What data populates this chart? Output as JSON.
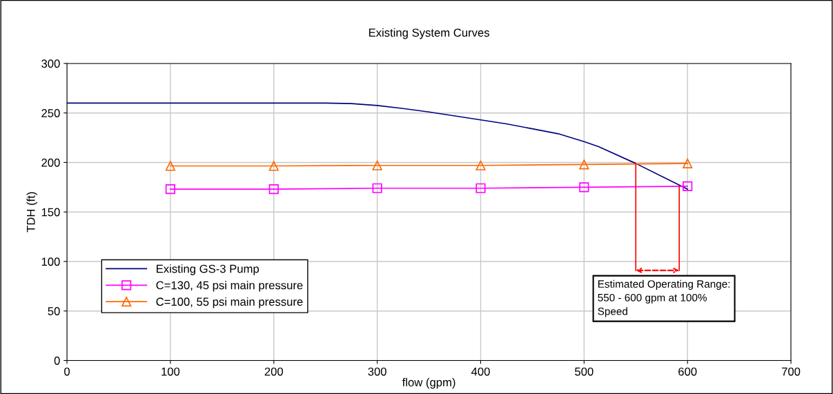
{
  "chart_data": {
    "type": "line",
    "title": "Existing System Curves",
    "xlabel": "flow (gpm)",
    "ylabel": "TDH (ft)",
    "xlim": [
      0,
      700
    ],
    "xticks": [
      0,
      100,
      200,
      300,
      400,
      500,
      600,
      700
    ],
    "ylim": [
      0,
      300
    ],
    "yticks": [
      0,
      50,
      100,
      150,
      200,
      250,
      300
    ],
    "grid": true,
    "legend": "left",
    "series": [
      {
        "name": "Existing GS-3 Pump",
        "color": "#000080",
        "marker": "none",
        "x": [
          0,
          250,
          275,
          300,
          325,
          350,
          375,
          400,
          425,
          450,
          475,
          500,
          514,
          550,
          600
        ],
        "values": [
          260,
          260,
          259.5,
          257.5,
          254.5,
          251,
          247,
          243,
          239,
          234,
          229,
          221,
          216,
          199,
          173
        ]
      },
      {
        "name": "C=130, 45 psi main pressure",
        "color": "#ff00ff",
        "marker": "square",
        "x": [
          100,
          200,
          300,
          400,
          500,
          600
        ],
        "values": [
          173,
          173,
          174,
          174,
          175,
          176
        ]
      },
      {
        "name": "C=100, 55 psi main pressure",
        "color": "#ff6600",
        "marker": "triangle",
        "x": [
          100,
          200,
          300,
          400,
          500,
          600
        ],
        "values": [
          196.5,
          196.5,
          197,
          197,
          198,
          199
        ]
      },
      {
        "color": "#ff0000",
        "marker": "none",
        "x": [
          550,
          550
        ],
        "values": [
          199,
          91
        ]
      },
      {
        "color": "#ff0000",
        "marker": "none",
        "x": [
          592,
          592
        ],
        "values": [
          176,
          91
        ]
      }
    ],
    "annotations": [
      {
        "text": "Estimated Operating Range:\n550 - 600 gpm at 100%\nSpeed",
        "x": 550,
        "y": 91
      }
    ]
  }
}
